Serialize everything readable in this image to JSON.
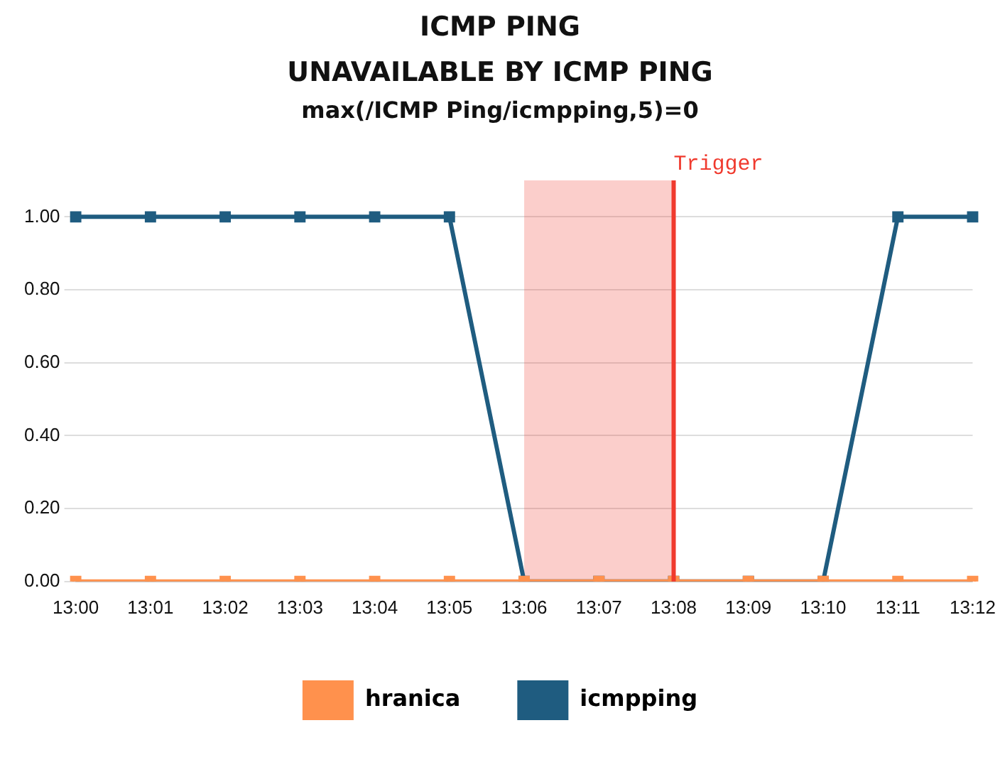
{
  "chart_data": {
    "type": "line",
    "title": "ICMP PING",
    "subtitle": "UNAVAILABLE BY ICMP PING",
    "annotations": [
      "max(/ICMP Ping/icmpping,5)=0"
    ],
    "categories": [
      "13:00",
      "13:01",
      "13:02",
      "13:03",
      "13:04",
      "13:05",
      "13:06",
      "13:07",
      "13:08",
      "13:09",
      "13:10",
      "13:11",
      "13:12"
    ],
    "series": [
      {
        "name": "hranica",
        "color": "#ff914d",
        "values": [
          0,
          0,
          0,
          0,
          0,
          0,
          0,
          0,
          0,
          0,
          0,
          0,
          0
        ]
      },
      {
        "name": "icmpping",
        "color": "#1f5c80",
        "values": [
          1,
          1,
          1,
          1,
          1,
          1,
          0,
          0,
          0,
          0,
          0,
          1,
          1
        ]
      }
    ],
    "ylim": [
      0,
      1.1
    ],
    "yticks": [
      {
        "value": 0,
        "label": "0.00"
      },
      {
        "value": 0.2,
        "label": "0.20"
      },
      {
        "value": 0.4,
        "label": "0.40"
      },
      {
        "value": 0.6,
        "label": "0.60"
      },
      {
        "value": 0.8,
        "label": "0.80"
      },
      {
        "value": 1,
        "label": "1.00"
      }
    ],
    "ref_lines": [
      {
        "axis": "x",
        "value": "13:08",
        "label": "Trigger",
        "color": "#f03a2e"
      }
    ],
    "bands": [
      {
        "axis": "x",
        "from": "13:06",
        "to": "13:08",
        "color": "#f03a2e"
      }
    ],
    "grid": "y",
    "legend": "bottom",
    "marker": "square",
    "line_style": "solid"
  }
}
